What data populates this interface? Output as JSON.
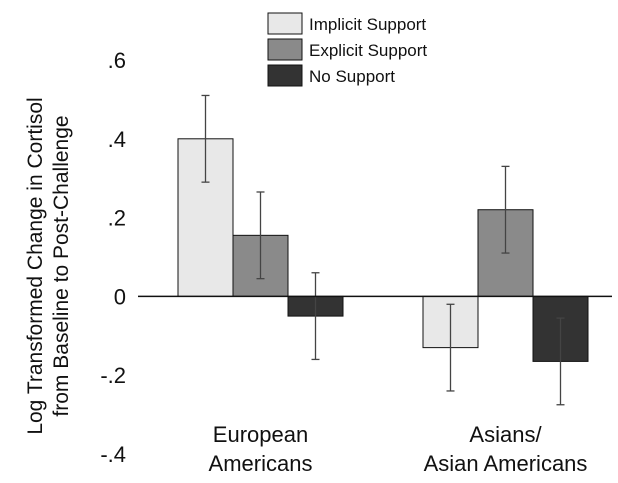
{
  "chart_data": {
    "type": "bar",
    "title": "",
    "ylabel_lines": [
      "Log Transformed Change in Cortisol",
      "from Baseline to Post-Challenge"
    ],
    "xlabel": "",
    "ylim": [
      -0.4,
      0.6
    ],
    "yticks": [
      0.6,
      0.4,
      0.2,
      0,
      -0.2,
      -0.4
    ],
    "ytick_labels": [
      ".6",
      ".4",
      ".2",
      "0",
      "-.2",
      "-.4"
    ],
    "categories": [
      {
        "lines": [
          "European",
          "Americans"
        ]
      },
      {
        "lines": [
          "Asians/",
          "Asian Americans"
        ]
      }
    ],
    "series": [
      {
        "name": "Implicit Support",
        "color": "#e8e8e8",
        "values": [
          0.4,
          -0.13
        ],
        "err_low": [
          0.29,
          -0.24
        ],
        "err_high": [
          0.51,
          -0.02
        ]
      },
      {
        "name": "Explicit Support",
        "color": "#8a8a8a",
        "values": [
          0.155,
          0.22
        ],
        "err_low": [
          0.045,
          0.11
        ],
        "err_high": [
          0.265,
          0.33
        ]
      },
      {
        "name": "No Support",
        "color": "#333333",
        "values": [
          -0.05,
          -0.165
        ],
        "err_low": [
          -0.16,
          -0.275
        ],
        "err_high": [
          0.06,
          -0.055
        ]
      }
    ],
    "legend_position": "top",
    "grid": false
  }
}
